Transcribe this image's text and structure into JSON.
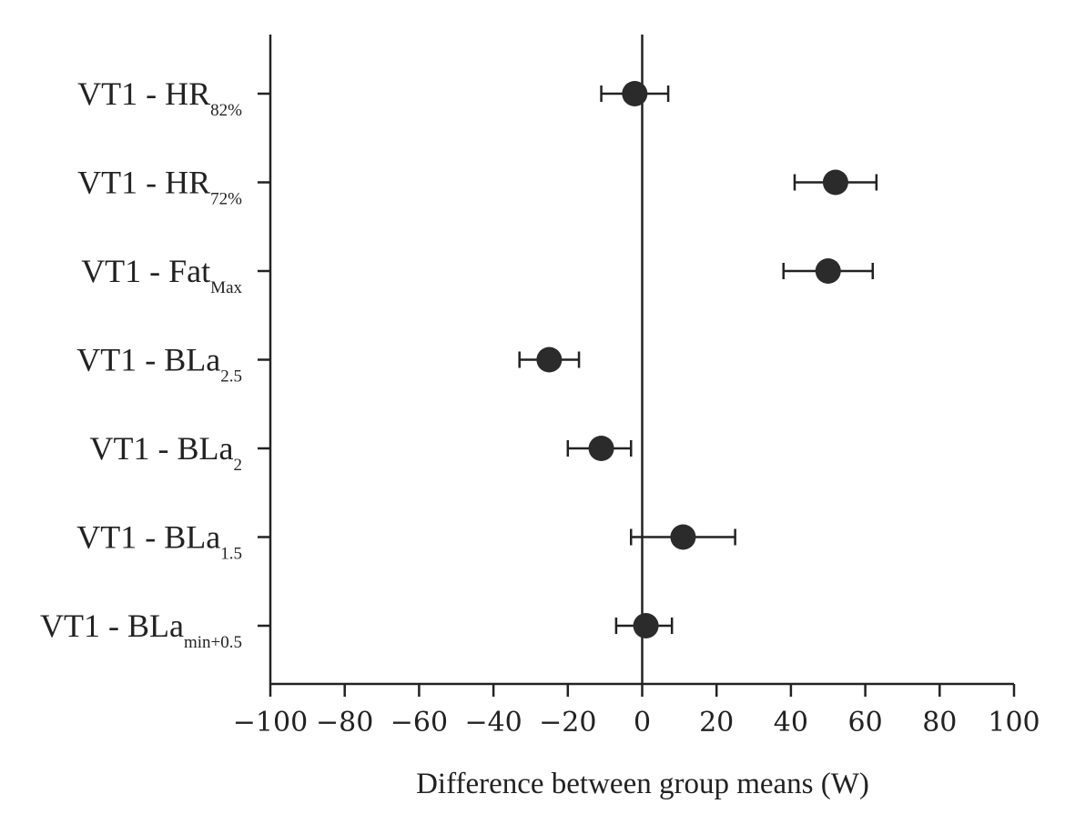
{
  "chart_data": {
    "type": "scatter",
    "subtype": "forest-plot-with-error-bars",
    "title": "",
    "xlabel": "Difference between group means (W)",
    "ylabel": "",
    "xlim": [
      -100,
      100
    ],
    "x_ticks": [
      -100,
      -80,
      -60,
      -40,
      -20,
      0,
      20,
      40,
      60,
      80,
      100
    ],
    "x_tick_labels": [
      "−100",
      "−80",
      "−60",
      "−40",
      "−20",
      "0",
      "20",
      "40",
      "60",
      "80",
      "100"
    ],
    "grid": false,
    "reference_line_x": 0,
    "marker_color": "#2b2b2b",
    "categories": [
      {
        "label_main": "VT1 - HR",
        "label_sub": "82%",
        "mean": -2,
        "lower": -11,
        "upper": 7
      },
      {
        "label_main": "VT1 - HR",
        "label_sub": "72%",
        "mean": 52,
        "lower": 41,
        "upper": 63
      },
      {
        "label_main": "VT1 - Fat",
        "label_sub": "Max",
        "mean": 50,
        "lower": 38,
        "upper": 62
      },
      {
        "label_main": "VT1 - BLa",
        "label_sub": "2.5",
        "mean": -25,
        "lower": -33,
        "upper": -17
      },
      {
        "label_main": "VT1 - BLa",
        "label_sub": "2",
        "mean": -11,
        "lower": -20,
        "upper": -3
      },
      {
        "label_main": "VT1 - BLa",
        "label_sub": "1.5",
        "mean": 11,
        "lower": -3,
        "upper": 25
      },
      {
        "label_main": "VT1 - BLa",
        "label_sub": "min+0.5",
        "mean": 1,
        "lower": -7,
        "upper": 8
      }
    ]
  }
}
